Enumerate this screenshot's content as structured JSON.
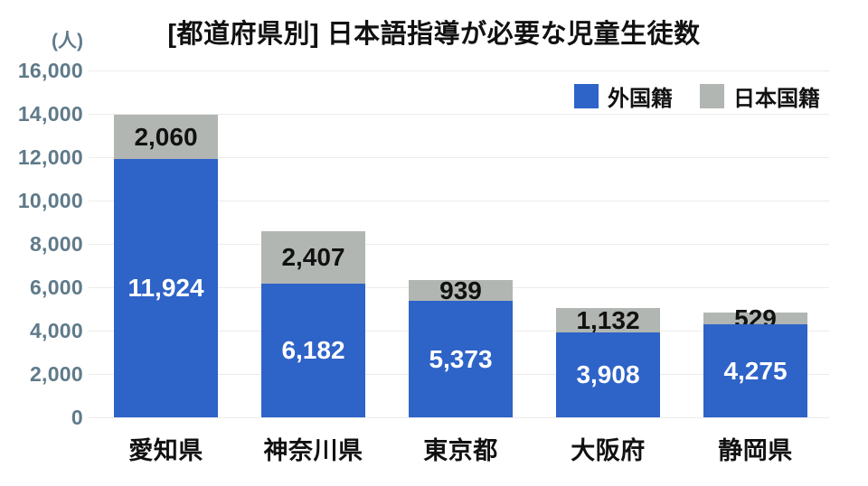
{
  "title": "[都道府県別] 日本語指導が必要な児童生徒数",
  "unit_label": "(人)",
  "colors": {
    "foreign_nationality_blue": "#2e63c8",
    "japanese_nationality_gray": "#b1b6b2",
    "axis_text": "#5f7a8a",
    "gridline": "#ebebeb",
    "label_dark": "#111111",
    "label_light": "#ffffff"
  },
  "legend": [
    {
      "label": "外国籍",
      "color": "#2e63c8"
    },
    {
      "label": "日本国籍",
      "color": "#b1b6b2"
    }
  ],
  "chart_data": {
    "type": "bar",
    "stacked": true,
    "title": "[都道府県別] 日本語指導が必要な児童生徒数",
    "unit": "人",
    "categories": [
      "愛知県",
      "神奈川県",
      "東京都",
      "大阪府",
      "静岡県"
    ],
    "series": [
      {
        "name": "外国籍",
        "color": "#2e63c8",
        "values": [
          11924,
          6182,
          5373,
          3908,
          4275
        ],
        "labels": [
          "11,924",
          "6,182",
          "5,373",
          "3,908",
          "4,275"
        ],
        "label_color": "#ffffff"
      },
      {
        "name": "日本国籍",
        "color": "#b1b6b2",
        "values": [
          2060,
          2407,
          939,
          1132,
          529
        ],
        "labels": [
          "2,060",
          "2,407",
          "939",
          "1,132",
          "529"
        ],
        "label_color": "#111111"
      }
    ],
    "ylim": [
      0,
      16000
    ],
    "ytick_step": 2000,
    "ytick_labels": [
      "0",
      "2,000",
      "4,000",
      "6,000",
      "8,000",
      "10,000",
      "12,000",
      "14,000",
      "16,000"
    ],
    "grid": true,
    "legend_position": "top-right"
  }
}
